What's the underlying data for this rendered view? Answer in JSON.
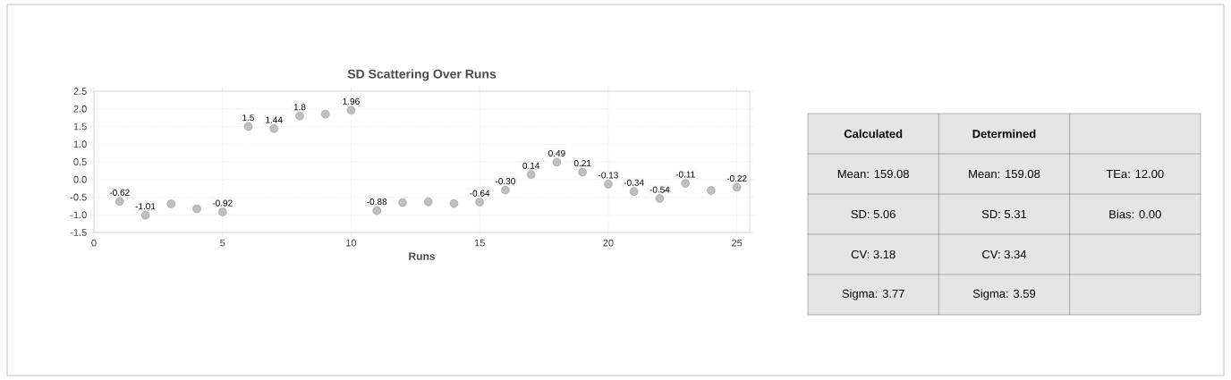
{
  "chart_data": [
    {
      "type": "scatter",
      "title": "SD Scattering Over Runs",
      "xlabel": "Runs",
      "x": [
        1,
        2,
        3,
        4,
        5,
        6,
        7,
        8,
        9,
        10,
        11,
        12,
        13,
        14,
        15,
        16,
        17,
        18,
        19,
        20,
        21,
        22,
        23,
        24,
        25
      ],
      "values": [
        -0.62,
        -1.01,
        -0.69,
        -0.83,
        -0.92,
        1.5,
        1.44,
        1.8,
        1.85,
        1.96,
        -0.88,
        -0.65,
        -0.63,
        -0.68,
        -0.64,
        -0.3,
        0.14,
        0.49,
        0.21,
        -0.13,
        -0.34,
        -0.54,
        -0.11,
        -0.31,
        -0.22
      ],
      "value_labels": [
        "-0.62",
        "-1.01",
        null,
        null,
        "-0.92",
        "1.5",
        "1.44",
        "1.8",
        null,
        "1.96",
        "-0.88",
        null,
        null,
        null,
        "-0.64",
        "-0.30",
        "0.14",
        "0.49",
        "0.21",
        "-0.13",
        "-0.34",
        "-0.54",
        "-0.11",
        null,
        "-0.22"
      ],
      "color": "#bfbfbf",
      "marker": "circle",
      "grid": true,
      "xlim": [
        0,
        25.5
      ],
      "xticks": [
        0,
        5,
        10,
        15,
        20,
        25
      ],
      "ylim": [
        -1.5,
        2.5
      ],
      "yticks": [
        {
          "value": -1.5,
          "label": "-1.5"
        },
        {
          "value": -1,
          "label": "-1.0"
        },
        {
          "value": -0.5,
          "label": "-0.5"
        },
        {
          "value": 0,
          "label": "0.0"
        },
        {
          "value": 0.5,
          "label": "0.5"
        },
        {
          "value": 1,
          "label": "1.0"
        },
        {
          "value": 1.5,
          "label": "1.5"
        },
        {
          "value": 2,
          "label": "2.0"
        },
        {
          "value": 2.5,
          "label": "2.5"
        }
      ]
    },
    {
      "type": "other",
      "categories": [
        "Calculated",
        "Determined",
        null
      ],
      "cell_labels": [
        [
          "Mean: 159.08",
          "Mean: 159.08",
          "TEa: 12.00"
        ],
        [
          "SD: 5.06",
          "SD: 5.31",
          "Bias: 0.00"
        ],
        [
          "CV: 3.18",
          "CV: 3.34",
          null
        ],
        [
          "Sigma: 3.77",
          "Sigma: 3.59",
          null
        ]
      ]
    }
  ]
}
